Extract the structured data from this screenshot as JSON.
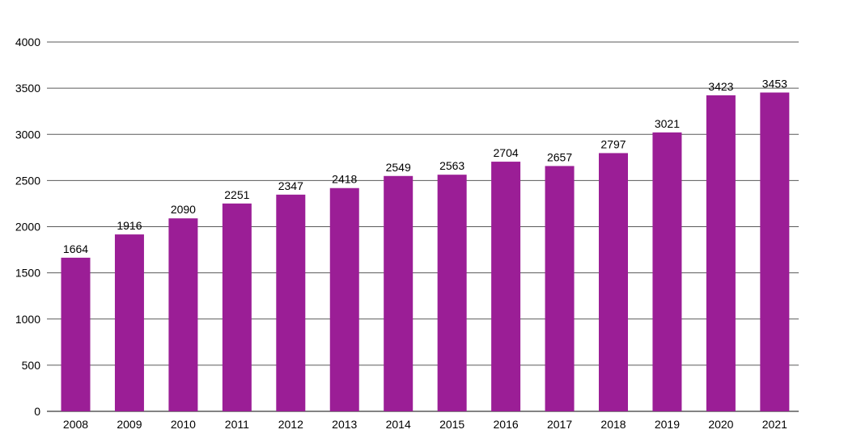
{
  "chart_data": {
    "type": "bar",
    "title": "",
    "xlabel": "",
    "ylabel": "",
    "categories": [
      "2008",
      "2009",
      "2010",
      "2011",
      "2012",
      "2013",
      "2014",
      "2015",
      "2016",
      "2017",
      "2018",
      "2019",
      "2020",
      "2021"
    ],
    "values": [
      1664,
      1916,
      2090,
      2251,
      2347,
      2418,
      2549,
      2563,
      2704,
      2657,
      2797,
      3021,
      3423,
      3453
    ],
    "data_labels": [
      "1664",
      "1916",
      "2090",
      "2251",
      "2347",
      "2418",
      "2549",
      "2563",
      "2704",
      "2657",
      "2797",
      "3021",
      "3423",
      "3453"
    ],
    "ylim": [
      0,
      4000
    ],
    "yticks": [
      "0",
      "500",
      "1000",
      "1500",
      "2000",
      "2500",
      "3000",
      "3500",
      "4000"
    ],
    "grid": true,
    "legend": "none",
    "bar_color": "#9b1e96",
    "grid_color": "#5a5a5a"
  }
}
